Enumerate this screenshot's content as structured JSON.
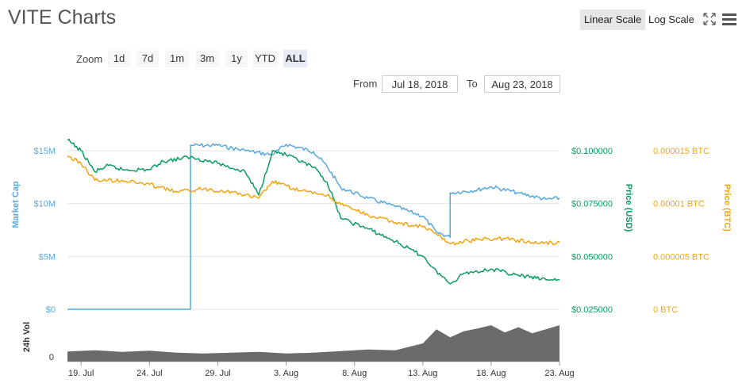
{
  "title": "VITE Charts",
  "scale": {
    "linear_label": "Linear Scale",
    "log_label": "Log Scale",
    "active": "linear"
  },
  "icons": [
    "fullscreen-icon",
    "menu-icon"
  ],
  "zoom": {
    "label": "Zoom",
    "options": [
      "1d",
      "7d",
      "1m",
      "3m",
      "1y",
      "YTD",
      "ALL"
    ],
    "active": "ALL"
  },
  "range": {
    "from_label": "From",
    "from_value": "Jul 18, 2018",
    "to_label": "To",
    "to_value": "Aug 23, 2018"
  },
  "colors": {
    "market_cap": "#56a9dc",
    "price_usd": "#0b9a62",
    "price_btc": "#f2a50f",
    "volume": "#6b6b6b",
    "grid": "#e6e6e6"
  },
  "chart_data": {
    "type": "line",
    "x_ticks": [
      "19. Jul",
      "24. Jul",
      "29. Jul",
      "3. Aug",
      "8. Aug",
      "13. Aug",
      "18. Aug",
      "23. Aug"
    ],
    "x_range": [
      "2018-07-18",
      "2018-08-23"
    ],
    "axes": {
      "market_cap": {
        "title": "Market Cap",
        "ticks": [
          "$0",
          "$5M",
          "$10M",
          "$15M"
        ],
        "range": [
          0,
          15000000
        ]
      },
      "price_usd": {
        "title": "Price (USD)",
        "ticks": [
          "$0.025000",
          "$0.050000",
          "$0.075000",
          "$0.100000"
        ],
        "range": [
          0.025,
          0.1
        ]
      },
      "price_btc": {
        "title": "Price (BTC)",
        "ticks": [
          "0 BTC",
          "0.000005 BTC",
          "0.00001 BTC",
          "0.000015 BTC"
        ],
        "range": [
          0,
          1.5e-05
        ]
      },
      "volume": {
        "title": "24h Vol",
        "ticks": [
          "0"
        ]
      }
    },
    "series": [
      {
        "name": "Market Cap",
        "key": "market_cap",
        "points": [
          [
            "2018-07-18",
            0
          ],
          [
            "2018-07-27",
            0
          ],
          [
            "2018-07-27",
            15500000
          ],
          [
            "2018-07-29",
            15500000
          ],
          [
            "2018-07-31",
            15000000
          ],
          [
            "2018-08-02",
            14600000
          ],
          [
            "2018-08-03",
            15600000
          ],
          [
            "2018-08-05",
            14900000
          ],
          [
            "2018-08-06",
            13500000
          ],
          [
            "2018-08-07",
            11500000
          ],
          [
            "2018-08-09",
            10500000
          ],
          [
            "2018-08-11",
            9700000
          ],
          [
            "2018-08-13",
            8800000
          ],
          [
            "2018-08-14",
            7300000
          ],
          [
            "2018-08-15",
            6800000
          ],
          [
            "2018-08-15",
            11000000
          ],
          [
            "2018-08-17",
            11300000
          ],
          [
            "2018-08-18",
            11600000
          ],
          [
            "2018-08-20",
            11000000
          ],
          [
            "2018-08-22",
            10400000
          ],
          [
            "2018-08-23",
            10500000
          ]
        ]
      },
      {
        "name": "Price (USD)",
        "key": "price_usd",
        "points": [
          [
            "2018-07-18",
            0.105
          ],
          [
            "2018-07-19",
            0.1
          ],
          [
            "2018-07-20",
            0.09
          ],
          [
            "2018-07-21",
            0.093
          ],
          [
            "2018-07-22",
            0.091
          ],
          [
            "2018-07-24",
            0.091
          ],
          [
            "2018-07-25",
            0.095
          ],
          [
            "2018-07-27",
            0.097
          ],
          [
            "2018-07-29",
            0.094
          ],
          [
            "2018-07-31",
            0.09
          ],
          [
            "2018-08-01",
            0.079
          ],
          [
            "2018-08-02",
            0.1
          ],
          [
            "2018-08-03",
            0.098
          ],
          [
            "2018-08-05",
            0.092
          ],
          [
            "2018-08-06",
            0.085
          ],
          [
            "2018-08-07",
            0.068
          ],
          [
            "2018-08-09",
            0.063
          ],
          [
            "2018-08-11",
            0.057
          ],
          [
            "2018-08-13",
            0.05
          ],
          [
            "2018-08-14",
            0.043
          ],
          [
            "2018-08-15",
            0.037
          ],
          [
            "2018-08-16",
            0.042
          ],
          [
            "2018-08-18",
            0.044
          ],
          [
            "2018-08-20",
            0.041
          ],
          [
            "2018-08-22",
            0.039
          ],
          [
            "2018-08-23",
            0.039
          ]
        ]
      },
      {
        "name": "Price (BTC)",
        "key": "price_btc",
        "points": [
          [
            "2018-07-18",
            1.45e-05
          ],
          [
            "2018-07-19",
            1.38e-05
          ],
          [
            "2018-07-20",
            1.22e-05
          ],
          [
            "2018-07-22",
            1.22e-05
          ],
          [
            "2018-07-24",
            1.18e-05
          ],
          [
            "2018-07-26",
            1.11e-05
          ],
          [
            "2018-07-28",
            1.14e-05
          ],
          [
            "2018-07-30",
            1.11e-05
          ],
          [
            "2018-08-01",
            1.05e-05
          ],
          [
            "2018-08-02",
            1.21e-05
          ],
          [
            "2018-08-04",
            1.12e-05
          ],
          [
            "2018-08-06",
            1.08e-05
          ],
          [
            "2018-08-07",
            9.9e-06
          ],
          [
            "2018-08-09",
            8.9e-06
          ],
          [
            "2018-08-11",
            8.2e-06
          ],
          [
            "2018-08-13",
            7.8e-06
          ],
          [
            "2018-08-14",
            7.1e-06
          ],
          [
            "2018-08-15",
            6.2e-06
          ],
          [
            "2018-08-17",
            6.6e-06
          ],
          [
            "2018-08-19",
            6.7e-06
          ],
          [
            "2018-08-21",
            6.3e-06
          ],
          [
            "2018-08-23",
            6.3e-06
          ]
        ]
      }
    ],
    "volume": [
      [
        "2018-07-18",
        0.25
      ],
      [
        "2018-07-20",
        0.28
      ],
      [
        "2018-07-22",
        0.24
      ],
      [
        "2018-07-24",
        0.27
      ],
      [
        "2018-07-26",
        0.22
      ],
      [
        "2018-07-28",
        0.2
      ],
      [
        "2018-07-30",
        0.22
      ],
      [
        "2018-08-01",
        0.24
      ],
      [
        "2018-08-03",
        0.2
      ],
      [
        "2018-08-05",
        0.22
      ],
      [
        "2018-08-07",
        0.26
      ],
      [
        "2018-08-09",
        0.3
      ],
      [
        "2018-08-11",
        0.28
      ],
      [
        "2018-08-13",
        0.45
      ],
      [
        "2018-08-14",
        0.8
      ],
      [
        "2018-08-15",
        0.6
      ],
      [
        "2018-08-16",
        0.75
      ],
      [
        "2018-08-17",
        0.82
      ],
      [
        "2018-08-18",
        0.9
      ],
      [
        "2018-08-19",
        0.72
      ],
      [
        "2018-08-20",
        0.85
      ],
      [
        "2018-08-21",
        0.7
      ],
      [
        "2018-08-22",
        0.8
      ],
      [
        "2018-08-23",
        0.9
      ]
    ]
  }
}
